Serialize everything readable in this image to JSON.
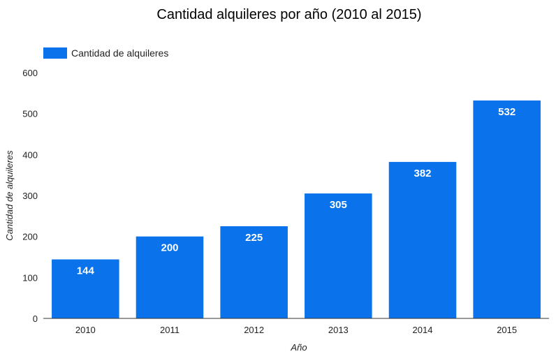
{
  "chart_data": {
    "type": "bar",
    "title": "Cantidad alquileres por año (2010 al 2015)",
    "xlabel": "Año",
    "ylabel": "Cantidad de alquileres",
    "categories": [
      "2010",
      "2011",
      "2012",
      "2013",
      "2014",
      "2015"
    ],
    "series": [
      {
        "name": "Cantidad de alquileres",
        "values": [
          144,
          200,
          225,
          305,
          382,
          532
        ],
        "color": "#0a73eb"
      }
    ],
    "ylim": [
      0,
      600
    ],
    "yticks": [
      0,
      100,
      200,
      300,
      400,
      500,
      600
    ],
    "grid": false,
    "legend": "top-left",
    "data_labels": true
  }
}
